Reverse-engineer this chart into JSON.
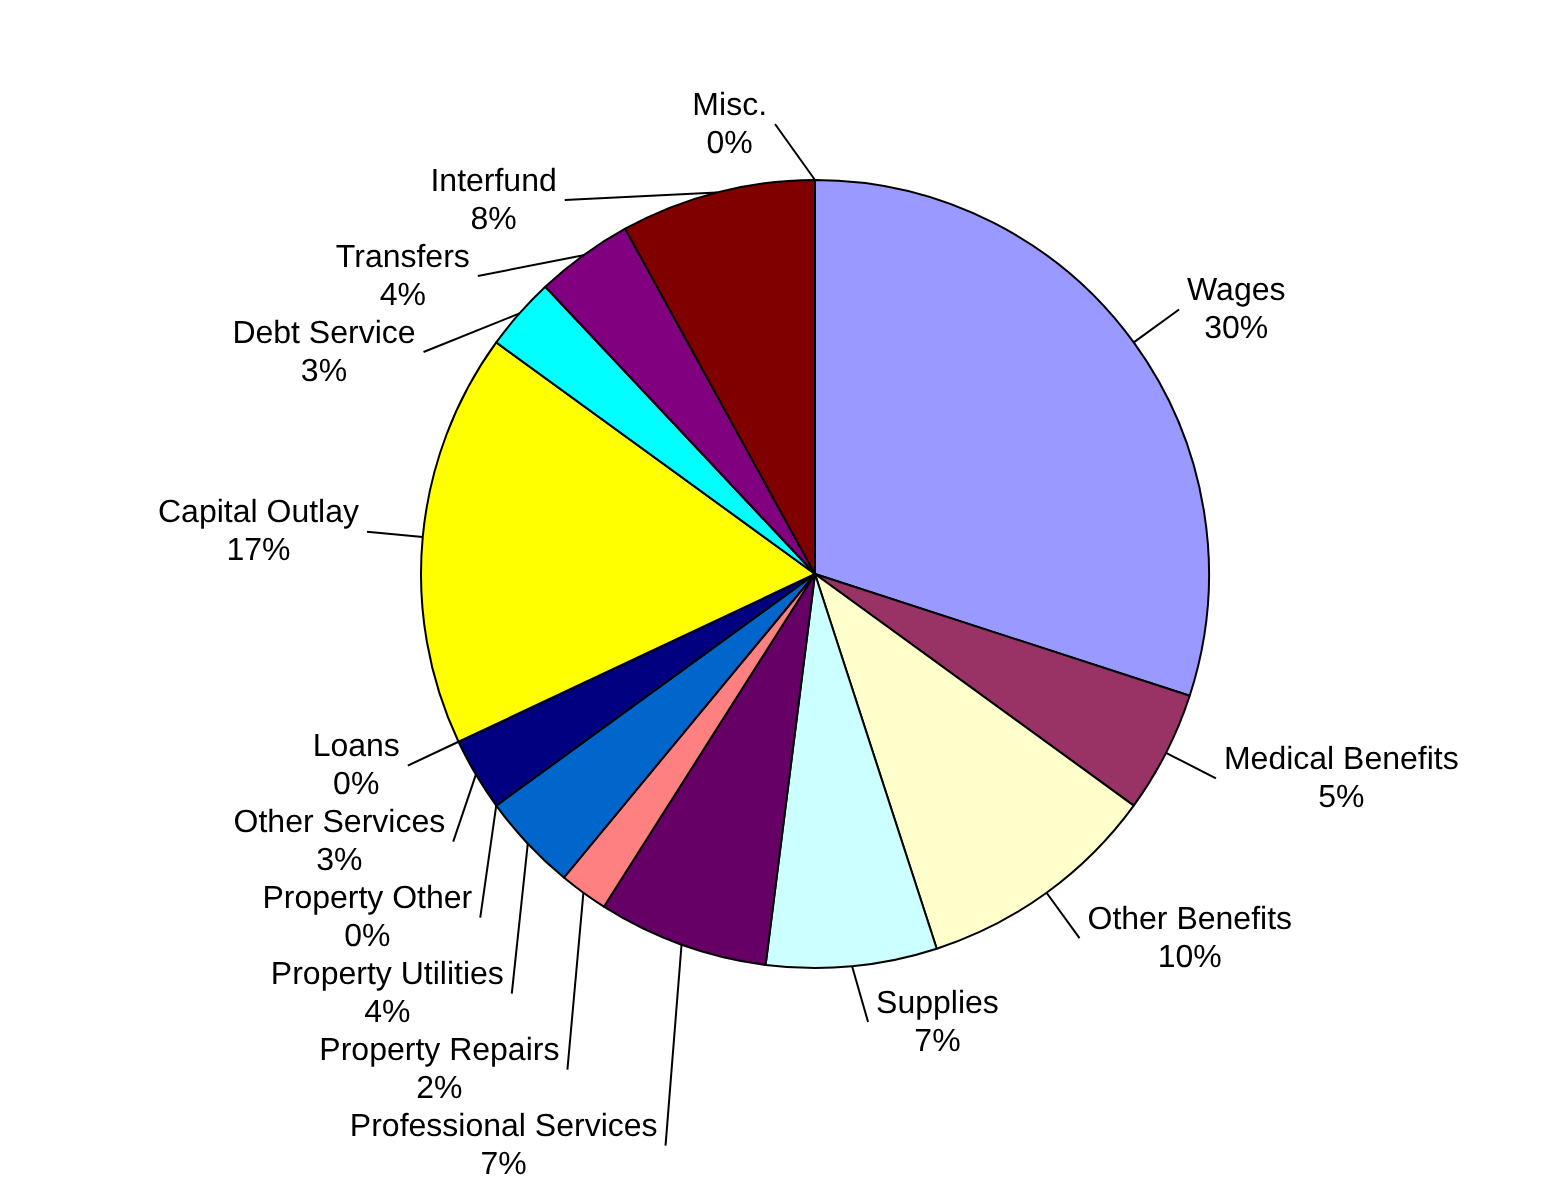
{
  "chart_data": {
    "type": "pie",
    "categories": [
      "Wages",
      "Medical Benefits",
      "Other Benefits",
      "Supplies",
      "Professional Services",
      "Property Repairs",
      "Property Utilities",
      "Property Other",
      "Other Services",
      "Loans",
      "Capital Outlay",
      "Debt Service",
      "Transfers",
      "Interfund",
      "Misc."
    ],
    "values": [
      30,
      5,
      10,
      7,
      7,
      2,
      4,
      0,
      3,
      0,
      17,
      3,
      4,
      8,
      0
    ],
    "value_labels": [
      "30%",
      "5%",
      "10%",
      "7%",
      "7%",
      "2%",
      "4%",
      "0%",
      "3%",
      "0%",
      "17%",
      "3%",
      "4%",
      "8%",
      "0%"
    ],
    "colors": [
      "#9999ff",
      "#993366",
      "#ffffcc",
      "#ccffff",
      "#660066",
      "#ff8080",
      "#0066cc",
      "#ccccff",
      "#000080",
      "#ff00ff",
      "#ffff00",
      "#00ffff",
      "#800080",
      "#800000",
      "#0000ff"
    ]
  }
}
